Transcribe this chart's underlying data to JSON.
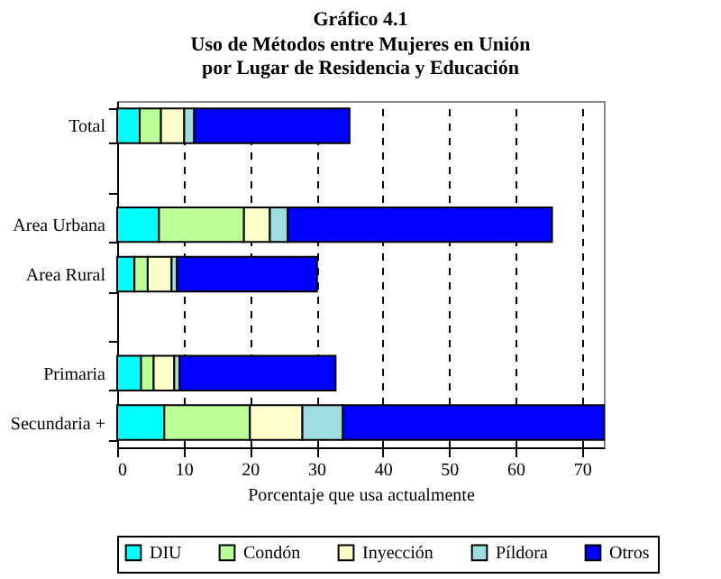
{
  "chart_data": {
    "type": "bar",
    "orientation": "horizontal",
    "stacked": true,
    "title": "Gráfico 4.1",
    "subtitle": "Uso de Métodos entre Mujeres en Unión\npor Lugar de Residencia y Educación",
    "xlabel": "Porcentaje que usa actualmente",
    "categories": [
      "Total",
      null,
      "Area Urbana",
      "Area Rural",
      null,
      "Primaria",
      "Secundaria +"
    ],
    "series": [
      {
        "name": "DIU",
        "color": "#00ffff",
        "values": [
          3.4,
          null,
          6.3,
          2.6,
          null,
          3.6,
          7.1
        ]
      },
      {
        "name": "Condón",
        "color": "#bbff99",
        "values": [
          3.2,
          null,
          12.8,
          2.0,
          null,
          1.9,
          12.9
        ]
      },
      {
        "name": "Inyección",
        "color": "#ffffcc",
        "values": [
          3.5,
          null,
          3.9,
          3.6,
          null,
          3.1,
          7.9
        ]
      },
      {
        "name": "Píldora",
        "color": "#a0dde0",
        "values": [
          1.5,
          null,
          2.7,
          0.8,
          null,
          0.8,
          6.1
        ]
      },
      {
        "name": "Otros",
        "color": "#0000ff",
        "values": [
          23.4,
          null,
          39.8,
          21.1,
          null,
          23.5,
          39.3
        ]
      }
    ],
    "xlim": [
      0,
      73.3
    ],
    "xticks": [
      0,
      10,
      20,
      30,
      40,
      50,
      60,
      70
    ],
    "grid": "x",
    "line_style": "dashed",
    "legend": "bottom"
  }
}
